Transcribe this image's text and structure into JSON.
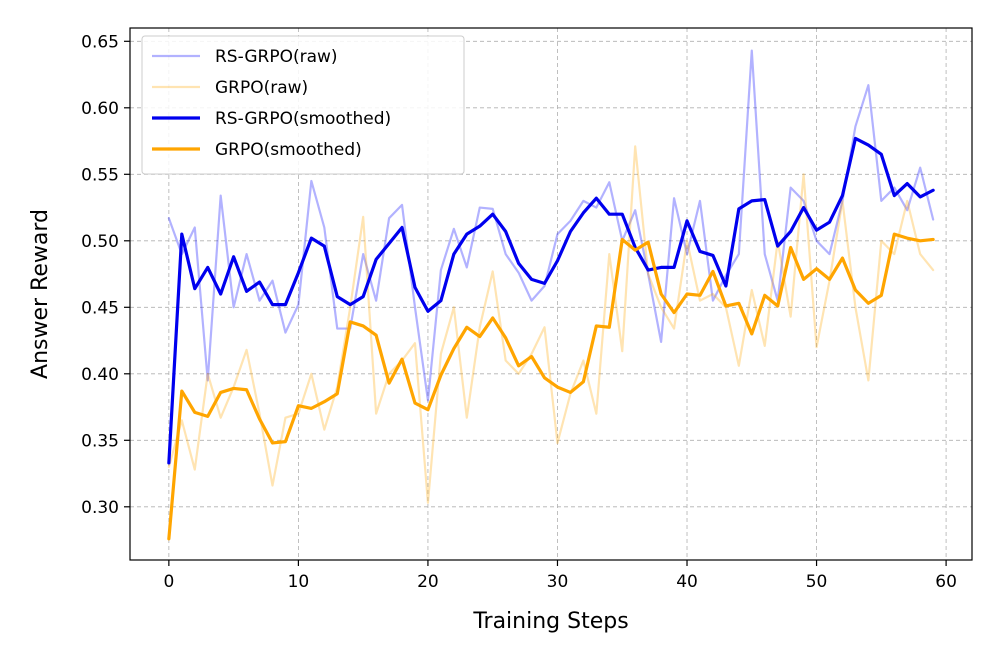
{
  "chart_data": {
    "type": "line",
    "xlabel": "Training Steps",
    "ylabel": "Answer Reward",
    "xlim": [
      -3,
      62
    ],
    "ylim": [
      0.26,
      0.66
    ],
    "xticks": [
      0,
      10,
      20,
      30,
      40,
      50,
      60
    ],
    "yticks": [
      0.3,
      0.35,
      0.4,
      0.45,
      0.5,
      0.55,
      0.6,
      0.65
    ],
    "xtick_labels": [
      "0",
      "10",
      "20",
      "30",
      "40",
      "50",
      "60"
    ],
    "ytick_labels": [
      "0.30",
      "0.35",
      "0.40",
      "0.45",
      "0.50",
      "0.55",
      "0.60",
      "0.65"
    ],
    "grid": true,
    "legend_position": "upper-left",
    "series": [
      {
        "name": "RS-GRPO(raw)",
        "color": "#0000ff",
        "opacity": 0.3,
        "width": "thin",
        "values": [
          0.517,
          0.49,
          0.51,
          0.395,
          0.534,
          0.45,
          0.49,
          0.455,
          0.47,
          0.431,
          0.452,
          0.545,
          0.51,
          0.434,
          0.434,
          0.49,
          0.455,
          0.517,
          0.527,
          0.45,
          0.38,
          0.478,
          0.509,
          0.48,
          0.525,
          0.524,
          0.49,
          0.476,
          0.455,
          0.466,
          0.505,
          0.515,
          0.53,
          0.525,
          0.544,
          0.5,
          0.523,
          0.475,
          0.424,
          0.532,
          0.49,
          0.53,
          0.455,
          0.474,
          0.49,
          0.643,
          0.49,
          0.455,
          0.54,
          0.53,
          0.5,
          0.49,
          0.53,
          0.586,
          0.617,
          0.53,
          0.54,
          0.523,
          0.555,
          0.516
        ]
      },
      {
        "name": "GRPO(raw)",
        "color": "#ffa500",
        "opacity": 0.3,
        "width": "thin",
        "values": [
          0.33,
          0.365,
          0.328,
          0.4,
          0.367,
          0.39,
          0.418,
          0.37,
          0.316,
          0.367,
          0.37,
          0.4,
          0.358,
          0.39,
          0.45,
          0.518,
          0.37,
          0.4,
          0.41,
          0.423,
          0.303,
          0.415,
          0.45,
          0.367,
          0.435,
          0.477,
          0.41,
          0.4,
          0.415,
          0.435,
          0.348,
          0.385,
          0.41,
          0.37,
          0.49,
          0.417,
          0.571,
          0.475,
          0.45,
          0.434,
          0.5,
          0.455,
          0.46,
          0.45,
          0.406,
          0.463,
          0.421,
          0.5,
          0.443,
          0.55,
          0.42,
          0.47,
          0.53,
          0.45,
          0.395,
          0.5,
          0.49,
          0.53,
          0.49,
          0.478
        ]
      },
      {
        "name": "RS-GRPO(smoothed)",
        "color": "#0000ee",
        "opacity": 1,
        "width": "thick",
        "values": [
          0.333,
          0.505,
          0.464,
          0.48,
          0.46,
          0.488,
          0.462,
          0.469,
          0.452,
          0.452,
          0.476,
          0.502,
          0.496,
          0.458,
          0.452,
          0.458,
          0.486,
          0.498,
          0.51,
          0.465,
          0.447,
          0.455,
          0.49,
          0.505,
          0.511,
          0.52,
          0.507,
          0.483,
          0.471,
          0.468,
          0.485,
          0.507,
          0.521,
          0.532,
          0.52,
          0.52,
          0.495,
          0.478,
          0.48,
          0.48,
          0.515,
          0.492,
          0.489,
          0.466,
          0.524,
          0.53,
          0.531,
          0.496,
          0.507,
          0.525,
          0.508,
          0.514,
          0.534,
          0.577,
          0.572,
          0.565,
          0.534,
          0.543,
          0.533,
          0.538
        ]
      },
      {
        "name": "GRPO(smoothed)",
        "color": "#ffa500",
        "opacity": 1,
        "width": "thick",
        "values": [
          0.276,
          0.387,
          0.371,
          0.368,
          0.386,
          0.389,
          0.388,
          0.366,
          0.348,
          0.349,
          0.376,
          0.374,
          0.379,
          0.385,
          0.439,
          0.436,
          0.429,
          0.393,
          0.411,
          0.378,
          0.373,
          0.399,
          0.419,
          0.435,
          0.428,
          0.442,
          0.427,
          0.406,
          0.413,
          0.397,
          0.39,
          0.386,
          0.394,
          0.436,
          0.435,
          0.501,
          0.493,
          0.499,
          0.46,
          0.446,
          0.46,
          0.459,
          0.477,
          0.451,
          0.453,
          0.43,
          0.459,
          0.451,
          0.495,
          0.471,
          0.479,
          0.471,
          0.487,
          0.463,
          0.453,
          0.459,
          0.505,
          0.502,
          0.5,
          0.501
        ]
      }
    ]
  }
}
